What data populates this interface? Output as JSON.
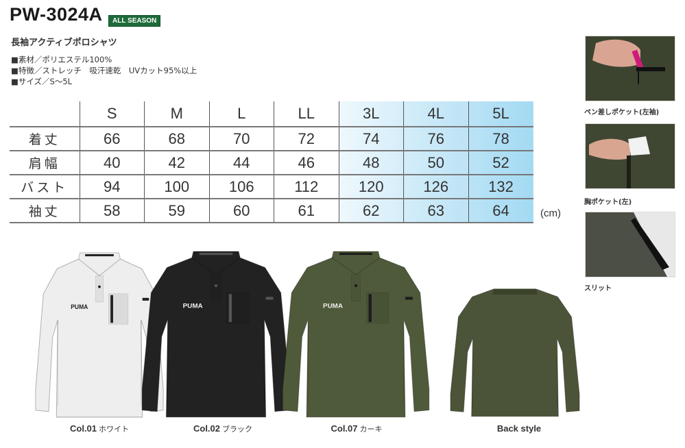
{
  "product": {
    "code": "PW-3024A",
    "season_badge": "ALL SEASON",
    "name": "長袖アクティブポロシャツ",
    "specs": [
      "■素材／ポリエステル100%",
      "■特徴／ストレッチ　吸汗速乾　UVカット95%以上",
      "■サイズ／S〜5L"
    ]
  },
  "size_table": {
    "headers": [
      "",
      "S",
      "M",
      "L",
      "LL",
      "3L",
      "4L",
      "5L"
    ],
    "rows": [
      {
        "label": "着丈",
        "values": [
          "66",
          "68",
          "70",
          "72",
          "74",
          "76",
          "78"
        ]
      },
      {
        "label": "肩幅",
        "values": [
          "40",
          "42",
          "44",
          "46",
          "48",
          "50",
          "52"
        ]
      },
      {
        "label": "バスト",
        "values": [
          "94",
          "100",
          "106",
          "112",
          "120",
          "126",
          "132"
        ]
      },
      {
        "label": "袖丈",
        "values": [
          "58",
          "59",
          "60",
          "61",
          "62",
          "63",
          "64"
        ]
      }
    ],
    "unit": "(cm)"
  },
  "detail_photos": [
    {
      "caption": "ペン差しポケット(左袖)"
    },
    {
      "caption": "胸ポケット(左)"
    },
    {
      "caption": "スリット"
    }
  ],
  "colors": [
    {
      "code": "Col.01",
      "name": "ホワイト",
      "hex": "#eeeeee",
      "trim": "#222222"
    },
    {
      "code": "Col.02",
      "name": "ブラック",
      "hex": "#222222",
      "trim": "#555555"
    },
    {
      "code": "Col.07",
      "name": "カーキ",
      "hex": "#4f5a3a",
      "trim": "#1c1c1c"
    },
    {
      "code": "Back style",
      "name": "",
      "hex": "#4b5438",
      "trim": "#3a4229"
    }
  ]
}
